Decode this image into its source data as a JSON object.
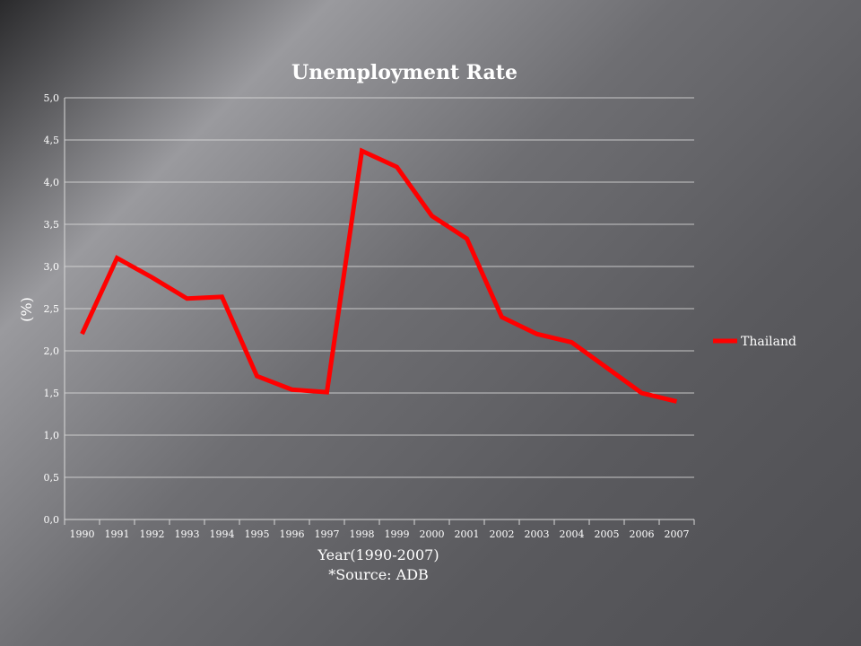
{
  "chart_data": {
    "type": "line",
    "title": "Unemployment Rate",
    "xlabel": "Year(1990-2007)",
    "ylabel": "(%)",
    "source": "*Source: ADB",
    "categories": [
      "1990",
      "1991",
      "1992",
      "1993",
      "1994",
      "1995",
      "1996",
      "1997",
      "1998",
      "1999",
      "2000",
      "2001",
      "2002",
      "2003",
      "2004",
      "2005",
      "2006",
      "2007"
    ],
    "ylim": [
      0,
      5
    ],
    "yticks": [
      "0,0",
      "0,5",
      "1,0",
      "1,5",
      "2,0",
      "2,5",
      "3,0",
      "3,5",
      "4,0",
      "4,5",
      "5,0"
    ],
    "grid": true,
    "legend_position": "right",
    "series": [
      {
        "name": "Thailand",
        "color": "#ff0000",
        "values": [
          2.2,
          3.1,
          2.87,
          2.62,
          2.64,
          1.7,
          1.54,
          1.51,
          4.37,
          4.18,
          3.6,
          3.33,
          2.4,
          2.2,
          2.1,
          1.8,
          1.5,
          1.4
        ]
      }
    ]
  }
}
